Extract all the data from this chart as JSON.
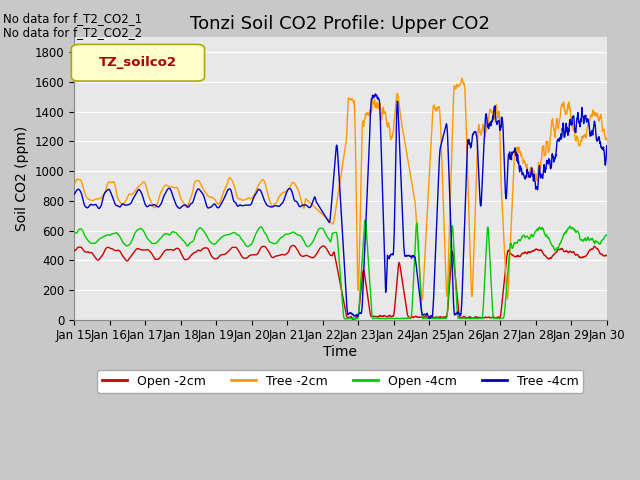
{
  "title": "Tonzi Soil CO2 Profile: Upper CO2",
  "xlabel": "Time",
  "ylabel": "Soil CO2 (ppm)",
  "no_data_text": [
    "No data for f_T2_CO2_1",
    "No data for f_T2_CO2_2"
  ],
  "legend_label": "TZ_soilco2",
  "ylim": [
    0,
    1900
  ],
  "yticks": [
    0,
    200,
    400,
    600,
    800,
    1000,
    1200,
    1400,
    1600,
    1800
  ],
  "xtick_days": [
    15,
    16,
    17,
    18,
    19,
    20,
    21,
    22,
    23,
    24,
    25,
    26,
    27,
    28,
    29,
    30
  ],
  "colors": {
    "open_2cm": "#cc0000",
    "tree_2cm": "#ff9900",
    "open_4cm": "#00cc00",
    "tree_4cm": "#0000cc"
  },
  "legend_entries": [
    "Open -2cm",
    "Tree -2cm",
    "Open -4cm",
    "Tree -4cm"
  ],
  "bg_color": "#e8e8e8",
  "grid_color": "#ffffff",
  "fig_bg_color": "#c8c8c8",
  "title_fontsize": 13,
  "axis_fontsize": 10,
  "tick_fontsize": 8.5,
  "nodata_fontsize": 8.5,
  "legend_label_color": "#aa0000",
  "legend_box_facecolor": "#ffffcc",
  "legend_box_edgecolor": "#aaaa00"
}
